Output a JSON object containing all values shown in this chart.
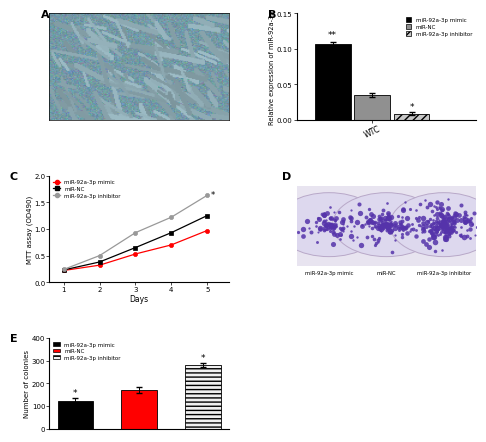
{
  "panel_B": {
    "bars": [
      {
        "label": "miR-92a-3p mimic",
        "value": 0.107,
        "error": 0.003,
        "color": "#000000",
        "hatch": null
      },
      {
        "label": "miR-NC",
        "value": 0.035,
        "error": 0.003,
        "color": "#909090",
        "hatch": null
      },
      {
        "label": "miR-92a-3p inhibitor",
        "value": 0.009,
        "error": 0.002,
        "color": "#c8c8c8",
        "hatch": "////"
      }
    ],
    "ylabel": "Relative expression of miR-92a-3p",
    "ylim": [
      0,
      0.15
    ],
    "yticks": [
      0.0,
      0.05,
      0.1,
      0.15
    ],
    "xlabel_tick": "WTC",
    "label": "B"
  },
  "panel_C": {
    "days": [
      1,
      2,
      3,
      4,
      5
    ],
    "series": [
      {
        "label": "miR-92a-3p mimic",
        "values": [
          0.22,
          0.32,
          0.53,
          0.7,
          0.97
        ],
        "color": "#ff0000",
        "marker": "o"
      },
      {
        "label": "miR-NC",
        "values": [
          0.23,
          0.38,
          0.65,
          0.93,
          1.25
        ],
        "color": "#000000",
        "marker": "s"
      },
      {
        "label": "miR-92a-3p inhibitor",
        "values": [
          0.24,
          0.5,
          0.93,
          1.22,
          1.63
        ],
        "color": "#999999",
        "marker": "o"
      }
    ],
    "xlabel": "Days",
    "ylabel": "MTT assay (OD490)",
    "ylim": [
      0.0,
      2.0
    ],
    "yticks": [
      0.0,
      0.5,
      1.0,
      1.5,
      2.0
    ],
    "label": "C"
  },
  "panel_D": {
    "plate_labels": [
      "miR-92a-3p mimic",
      "miR-NC",
      "miR-92a-3p inhibitor"
    ],
    "colony_counts": [
      80,
      140,
      220
    ],
    "plate_bg": "#f0eef6",
    "colony_color": "#5533aa",
    "label": "D"
  },
  "panel_E": {
    "values": [
      123,
      170,
      280
    ],
    "errors": [
      10,
      12,
      10
    ],
    "colors": [
      "#000000",
      "#ff0000",
      "#f0f0f0"
    ],
    "hatches": [
      null,
      null,
      "----"
    ],
    "labels": [
      "miR-92a-3p mimic",
      "miR-NC",
      "miR-92a-3p inhibitor"
    ],
    "ylabel": "Number of colonies",
    "ylim": [
      0,
      400
    ],
    "yticks": [
      0,
      100,
      200,
      300,
      400
    ],
    "star_y": [
      138,
      null,
      295
    ],
    "label": "E"
  },
  "bg": "#ffffff"
}
